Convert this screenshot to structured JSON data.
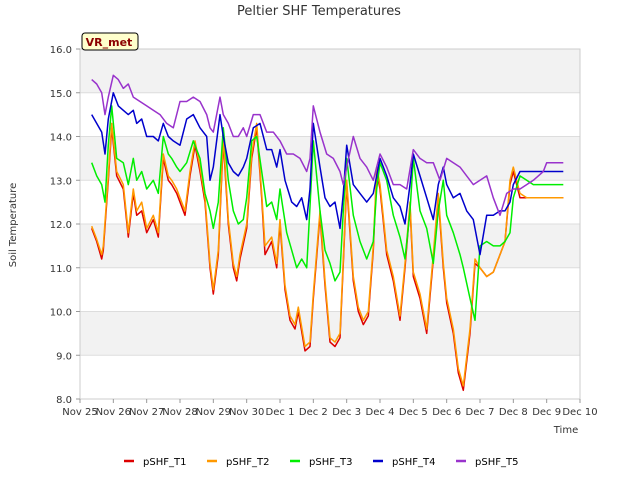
{
  "chart_data": {
    "type": "line",
    "title": "Peltier SHF Temperatures",
    "xlabel": "Time",
    "ylabel": "Soil Temperature",
    "badge": "VR_met",
    "ylim": [
      8.0,
      16.0
    ],
    "yticks": [
      "8.0",
      "9.0",
      "10.0",
      "11.0",
      "12.0",
      "13.0",
      "14.0",
      "15.0",
      "16.0"
    ],
    "xlim": [
      0,
      15
    ],
    "xticks": [
      "Nov 25",
      "Nov 26",
      "Nov 27",
      "Nov 28",
      "Nov 29",
      "Nov 30",
      "Dec 1",
      "Dec 2",
      "Dec 3",
      "Dec 4",
      "Dec 5",
      "Dec 6",
      "Dec 7",
      "Dec 8",
      "Dec 9",
      "Dec 10"
    ],
    "grid": true,
    "legend_position": "bottom",
    "series": [
      {
        "name": "pSHF_T1",
        "color": "#dd0000",
        "x": [
          0.35,
          0.5,
          0.65,
          0.7,
          0.85,
          0.95,
          1.1,
          1.3,
          1.45,
          1.6,
          1.7,
          1.85,
          2.0,
          2.2,
          2.35,
          2.5,
          2.65,
          2.75,
          2.9,
          3.0,
          3.15,
          3.3,
          3.45,
          3.6,
          3.75,
          3.9,
          4.0,
          4.15,
          4.3,
          4.45,
          4.6,
          4.7,
          4.8,
          5.0,
          5.15,
          5.3,
          5.45,
          5.55,
          5.75,
          5.9,
          6.0,
          6.15,
          6.3,
          6.45,
          6.55,
          6.75,
          6.9,
          7.0,
          7.2,
          7.35,
          7.5,
          7.65,
          7.8,
          7.9,
          8.0,
          8.2,
          8.35,
          8.5,
          8.65,
          8.8,
          8.9,
          9.0,
          9.2,
          9.4,
          9.6,
          9.75,
          9.9,
          10.0,
          10.2,
          10.4,
          10.6,
          10.75,
          10.9,
          11.0,
          11.2,
          11.35,
          11.5,
          11.7,
          11.85,
          12.0,
          12.2,
          12.4,
          12.6,
          12.75,
          12.9,
          13.0,
          13.2,
          13.4,
          13.6,
          13.75,
          13.9,
          14.0,
          14.15,
          14.3,
          14.45,
          14.5
        ],
        "y": [
          11.9,
          11.6,
          11.2,
          11.4,
          13.0,
          14.2,
          13.1,
          12.8,
          11.7,
          12.7,
          12.2,
          12.3,
          11.8,
          12.1,
          11.7,
          13.5,
          13.0,
          12.9,
          12.7,
          12.5,
          12.2,
          13.1,
          13.8,
          13.2,
          12.5,
          11.0,
          10.4,
          11.3,
          13.9,
          12.0,
          11.0,
          10.7,
          11.2,
          11.9,
          13.5,
          14.2,
          12.6,
          11.3,
          11.6,
          11.0,
          12.0,
          10.5,
          9.8,
          9.6,
          10.0,
          9.1,
          9.2,
          10.3,
          12.2,
          10.6,
          9.3,
          9.2,
          9.4,
          11.1,
          12.9,
          10.7,
          10.0,
          9.7,
          9.9,
          11.4,
          13.2,
          12.8,
          11.3,
          10.7,
          9.8,
          11.0,
          12.4,
          10.8,
          10.3,
          9.5,
          11.2,
          12.6,
          11.0,
          10.2,
          9.5,
          8.6,
          8.2,
          9.5,
          11.1,
          11.0,
          10.8,
          10.9,
          11.3,
          11.6,
          12.9,
          13.2,
          12.6,
          12.6,
          12.6,
          12.6,
          12.6,
          12.6,
          12.6,
          12.6,
          12.6,
          12.6
        ]
      },
      {
        "name": "pSHF_T2",
        "color": "#ff9900",
        "x": [
          0.35,
          0.5,
          0.65,
          0.7,
          0.85,
          0.95,
          1.1,
          1.3,
          1.45,
          1.6,
          1.7,
          1.85,
          2.0,
          2.2,
          2.35,
          2.5,
          2.65,
          2.75,
          2.9,
          3.0,
          3.15,
          3.3,
          3.45,
          3.6,
          3.75,
          3.9,
          4.0,
          4.15,
          4.3,
          4.45,
          4.6,
          4.7,
          4.8,
          5.0,
          5.15,
          5.3,
          5.45,
          5.55,
          5.75,
          5.9,
          6.0,
          6.15,
          6.3,
          6.45,
          6.55,
          6.75,
          6.9,
          7.0,
          7.2,
          7.35,
          7.5,
          7.65,
          7.8,
          7.9,
          8.0,
          8.2,
          8.35,
          8.5,
          8.65,
          8.8,
          8.9,
          9.0,
          9.2,
          9.4,
          9.6,
          9.75,
          9.9,
          10.0,
          10.2,
          10.4,
          10.6,
          10.75,
          10.9,
          11.0,
          11.2,
          11.35,
          11.5,
          11.7,
          11.85,
          12.0,
          12.2,
          12.4,
          12.6,
          12.75,
          12.9,
          13.0,
          13.2,
          13.4,
          13.6,
          13.75,
          13.9,
          14.0,
          14.15,
          14.3,
          14.45,
          14.5
        ],
        "y": [
          11.95,
          11.65,
          11.3,
          11.5,
          13.1,
          14.3,
          13.2,
          12.9,
          11.8,
          12.8,
          12.3,
          12.5,
          11.9,
          12.2,
          11.8,
          13.6,
          13.1,
          13.0,
          12.8,
          12.6,
          12.3,
          13.2,
          13.9,
          13.3,
          12.6,
          11.1,
          10.5,
          11.4,
          14.0,
          12.1,
          11.1,
          10.8,
          11.3,
          12.0,
          13.6,
          14.3,
          12.7,
          11.5,
          11.7,
          11.1,
          12.1,
          10.6,
          9.9,
          9.7,
          10.1,
          9.2,
          9.3,
          10.4,
          12.3,
          10.7,
          9.4,
          9.3,
          9.5,
          11.2,
          13.0,
          10.8,
          10.1,
          9.8,
          10.0,
          11.5,
          13.3,
          12.9,
          11.4,
          10.8,
          9.9,
          11.1,
          12.5,
          10.9,
          10.4,
          9.6,
          11.3,
          12.7,
          11.1,
          10.3,
          9.6,
          8.7,
          8.3,
          9.6,
          11.2,
          11.0,
          10.8,
          10.9,
          11.3,
          11.6,
          13.0,
          13.3,
          12.7,
          12.6,
          12.6,
          12.6,
          12.6,
          12.6,
          12.6,
          12.6,
          12.6,
          12.6
        ]
      },
      {
        "name": "pSHF_T3",
        "color": "#00ee00",
        "x": [
          0.35,
          0.5,
          0.65,
          0.75,
          0.85,
          0.95,
          1.1,
          1.3,
          1.45,
          1.6,
          1.7,
          1.85,
          2.0,
          2.2,
          2.35,
          2.5,
          2.65,
          2.75,
          2.9,
          3.0,
          3.2,
          3.4,
          3.6,
          3.75,
          3.9,
          4.0,
          4.15,
          4.3,
          4.45,
          4.6,
          4.75,
          4.9,
          5.0,
          5.15,
          5.3,
          5.45,
          5.6,
          5.75,
          5.9,
          6.0,
          6.2,
          6.35,
          6.5,
          6.65,
          6.8,
          6.9,
          7.0,
          7.2,
          7.35,
          7.5,
          7.65,
          7.8,
          7.9,
          8.0,
          8.2,
          8.4,
          8.6,
          8.8,
          8.9,
          9.0,
          9.2,
          9.4,
          9.6,
          9.75,
          9.9,
          10.0,
          10.2,
          10.4,
          10.6,
          10.75,
          10.9,
          11.0,
          11.2,
          11.4,
          11.5,
          11.7,
          11.85,
          12.0,
          12.2,
          12.4,
          12.6,
          12.75,
          12.9,
          13.0,
          13.2,
          13.4,
          13.6,
          13.75,
          13.9,
          14.0,
          14.15,
          14.3,
          14.45,
          14.5
        ],
        "y": [
          13.4,
          13.1,
          12.9,
          12.5,
          13.8,
          14.7,
          13.5,
          13.4,
          12.9,
          13.5,
          13.0,
          13.2,
          12.8,
          13.0,
          12.7,
          14.0,
          13.6,
          13.5,
          13.3,
          13.2,
          13.4,
          13.9,
          13.5,
          12.7,
          12.3,
          11.9,
          12.5,
          14.2,
          13.0,
          12.3,
          12.0,
          12.1,
          12.6,
          13.9,
          14.0,
          13.2,
          12.4,
          12.5,
          12.1,
          12.8,
          11.8,
          11.4,
          11.0,
          11.2,
          11.0,
          12.4,
          13.9,
          12.3,
          11.4,
          11.1,
          10.7,
          10.9,
          12.3,
          13.5,
          12.2,
          11.6,
          11.2,
          11.6,
          12.8,
          13.4,
          13.0,
          12.2,
          11.7,
          11.2,
          12.3,
          13.5,
          12.3,
          11.9,
          11.1,
          12.3,
          13.0,
          12.2,
          11.8,
          11.3,
          11.0,
          10.3,
          9.8,
          11.5,
          11.6,
          11.5,
          11.5,
          11.6,
          11.8,
          12.6,
          13.1,
          13.0,
          12.9,
          12.9,
          12.9,
          12.9,
          12.9,
          12.9,
          12.9,
          12.9
        ]
      },
      {
        "name": "pSHF_T4",
        "color": "#0000cc",
        "x": [
          0.35,
          0.5,
          0.65,
          0.75,
          0.85,
          1.0,
          1.15,
          1.3,
          1.45,
          1.6,
          1.7,
          1.85,
          2.0,
          2.2,
          2.35,
          2.5,
          2.65,
          2.8,
          3.0,
          3.2,
          3.4,
          3.6,
          3.8,
          3.9,
          4.0,
          4.2,
          4.3,
          4.45,
          4.6,
          4.75,
          4.9,
          5.0,
          5.2,
          5.4,
          5.6,
          5.75,
          5.9,
          6.0,
          6.15,
          6.35,
          6.5,
          6.65,
          6.8,
          6.9,
          7.0,
          7.2,
          7.35,
          7.5,
          7.65,
          7.8,
          7.9,
          8.0,
          8.2,
          8.4,
          8.6,
          8.8,
          9.0,
          9.2,
          9.4,
          9.6,
          9.75,
          9.9,
          10.0,
          10.2,
          10.4,
          10.6,
          10.75,
          10.9,
          11.0,
          11.2,
          11.4,
          11.6,
          11.8,
          12.0,
          12.2,
          12.4,
          12.6,
          12.75,
          12.9,
          13.0,
          13.2,
          13.4,
          13.6,
          13.75,
          13.9,
          14.0,
          14.15,
          14.3,
          14.45,
          14.5
        ],
        "y": [
          14.5,
          14.3,
          14.1,
          13.6,
          14.4,
          15.0,
          14.7,
          14.6,
          14.5,
          14.6,
          14.3,
          14.4,
          14.0,
          14.0,
          13.9,
          14.3,
          14.0,
          13.9,
          13.8,
          14.4,
          14.5,
          14.2,
          14.0,
          13.0,
          13.3,
          14.5,
          14.0,
          13.4,
          13.2,
          13.1,
          13.3,
          13.5,
          14.2,
          14.3,
          13.7,
          13.7,
          13.3,
          13.7,
          13.0,
          12.5,
          12.4,
          12.6,
          12.1,
          12.8,
          14.3,
          13.3,
          12.6,
          12.4,
          12.5,
          11.9,
          12.7,
          13.8,
          12.9,
          12.7,
          12.5,
          12.7,
          13.5,
          13.1,
          12.6,
          12.4,
          12.0,
          12.9,
          13.6,
          13.1,
          12.6,
          12.1,
          12.9,
          13.3,
          12.9,
          12.6,
          12.7,
          12.3,
          12.1,
          11.3,
          12.2,
          12.2,
          12.3,
          12.3,
          12.5,
          12.9,
          13.2,
          13.2,
          13.2,
          13.2,
          13.2,
          13.2,
          13.2,
          13.2,
          13.2,
          13.2
        ]
      },
      {
        "name": "pSHF_T5",
        "color": "#9933cc",
        "x": [
          0.35,
          0.5,
          0.65,
          0.75,
          0.85,
          1.0,
          1.15,
          1.3,
          1.45,
          1.6,
          1.8,
          2.0,
          2.2,
          2.4,
          2.6,
          2.8,
          3.0,
          3.2,
          3.4,
          3.6,
          3.8,
          3.9,
          4.0,
          4.2,
          4.3,
          4.45,
          4.6,
          4.75,
          4.9,
          5.0,
          5.2,
          5.4,
          5.6,
          5.8,
          6.0,
          6.2,
          6.4,
          6.6,
          6.8,
          6.9,
          7.0,
          7.2,
          7.4,
          7.6,
          7.8,
          7.9,
          8.0,
          8.2,
          8.4,
          8.6,
          8.8,
          9.0,
          9.2,
          9.4,
          9.6,
          9.8,
          10.0,
          10.2,
          10.4,
          10.6,
          10.8,
          11.0,
          11.2,
          11.4,
          11.6,
          11.8,
          12.0,
          12.2,
          12.4,
          12.6,
          12.8,
          13.0,
          13.2,
          13.4,
          13.6,
          13.75,
          13.9,
          14.0,
          14.15,
          14.3,
          14.45,
          14.5
        ],
        "y": [
          15.3,
          15.2,
          15.0,
          14.5,
          14.9,
          15.4,
          15.3,
          15.1,
          15.2,
          14.9,
          14.8,
          14.7,
          14.6,
          14.5,
          14.3,
          14.2,
          14.8,
          14.8,
          14.9,
          14.8,
          14.5,
          14.2,
          14.1,
          14.9,
          14.5,
          14.3,
          14.0,
          14.0,
          14.2,
          14.0,
          14.5,
          14.5,
          14.1,
          14.1,
          13.9,
          13.6,
          13.6,
          13.5,
          13.2,
          13.5,
          14.7,
          14.1,
          13.6,
          13.5,
          13.2,
          12.9,
          13.3,
          14.0,
          13.5,
          13.3,
          13.0,
          13.6,
          13.3,
          12.9,
          12.9,
          12.8,
          13.7,
          13.5,
          13.4,
          13.4,
          13.0,
          13.5,
          13.4,
          13.3,
          13.1,
          12.9,
          13.0,
          13.1,
          12.6,
          12.2,
          12.7,
          12.8,
          12.8,
          12.9,
          13.0,
          13.1,
          13.2,
          13.4,
          13.4,
          13.4,
          13.4,
          13.4
        ]
      }
    ]
  }
}
